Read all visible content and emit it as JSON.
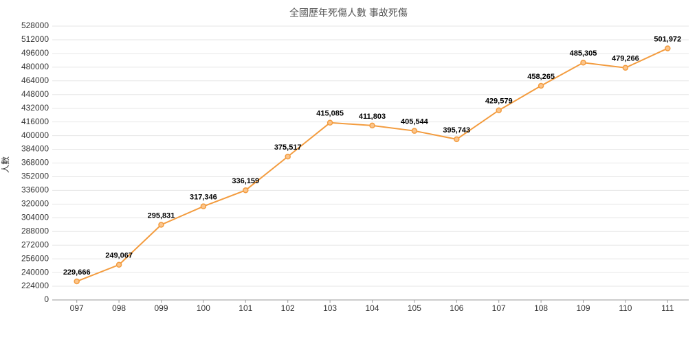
{
  "chart_data": {
    "type": "line",
    "title": "全國歷年死傷人數 事故死傷",
    "y_label": "人數",
    "categories": [
      "097",
      "098",
      "099",
      "100",
      "101",
      "102",
      "103",
      "104",
      "105",
      "106",
      "107",
      "108",
      "109",
      "110",
      "111"
    ],
    "series": [
      {
        "name": "事故死傷",
        "color": "#f39c3f",
        "values": [
          229666,
          249067,
          295831,
          317346,
          336159,
          375517,
          415085,
          411803,
          405544,
          395743,
          429579,
          458265,
          485305,
          479266,
          501972
        ],
        "value_labels": [
          "229,666",
          "249,067",
          "295,831",
          "317,346",
          "336,159",
          "375,517",
          "415,085",
          "411,803",
          "405,544",
          "395,743",
          "429,579",
          "458,265",
          "485,305",
          "479,266",
          "501,972"
        ]
      }
    ],
    "ylim": [
      208000,
      528000
    ],
    "yticks": [
      {
        "value": 208000,
        "label": "0"
      },
      224000,
      240000,
      256000,
      272000,
      288000,
      304000,
      320000,
      336000,
      352000,
      368000,
      384000,
      400000,
      416000,
      432000,
      448000,
      464000,
      480000,
      496000,
      512000,
      528000
    ],
    "grid": true
  }
}
